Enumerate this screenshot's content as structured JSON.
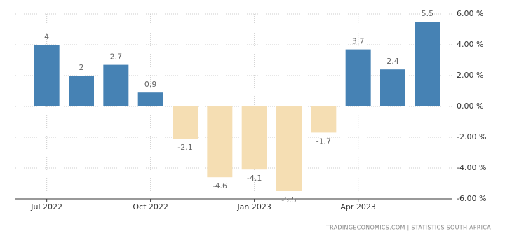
{
  "chart_data": {
    "type": "bar",
    "categories": [
      "Jul 2022",
      null,
      null,
      "Oct 2022",
      null,
      null,
      "Jan 2023",
      null,
      null,
      "Apr 2023",
      null,
      null
    ],
    "values": [
      4,
      2,
      2.7,
      0.9,
      -2.1,
      -4.6,
      -4.1,
      -5.5,
      -1.7,
      3.7,
      2.4,
      5.5
    ],
    "color_positive": "#4682b4",
    "color_negative": "#f5deb3",
    "ylim": [
      -6,
      6
    ],
    "yticks": [
      {
        "value": 6,
        "label": "6.00 %"
      },
      {
        "value": 4,
        "label": "4.00 %"
      },
      {
        "value": 2,
        "label": "2.00 %"
      },
      {
        "value": 0,
        "label": "0.00 %"
      },
      {
        "value": -2,
        "label": "-2.00 %"
      },
      {
        "value": -4,
        "label": "-4.00 %"
      },
      {
        "value": -6,
        "label": "-6.00 %"
      }
    ],
    "grid": true,
    "source": "TRADINGECONOMICS.COM | STATISTICS SOUTH AFRICA"
  }
}
